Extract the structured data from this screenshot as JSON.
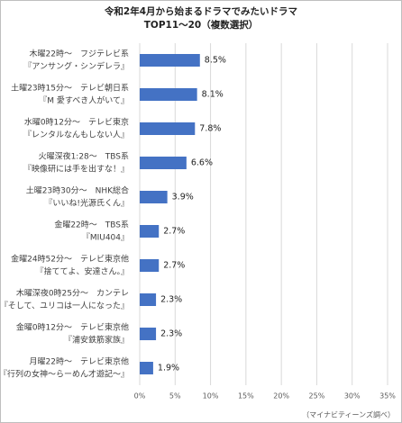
{
  "chart_data": {
    "type": "bar",
    "orientation": "horizontal",
    "title": "令和2年4月から始まるドラマでみたいドラマ",
    "subtitle": "TOP11～20（複数選択）",
    "categories": [
      [
        "木曜22時～　フジテレビ系",
        "『アンサング・シンデレラ』"
      ],
      [
        "土曜23時15分～　テレビ朝日系",
        "『M 愛すべき人がいて』"
      ],
      [
        "水曜0時12分～　テレビ東京",
        "『レンタルなんもしない人』"
      ],
      [
        "火曜深夜1:28～　TBS系",
        "『映像研には手を出すな！』"
      ],
      [
        "土曜23時30分～　NHK総合",
        "『いいね!光源氏くん』"
      ],
      [
        "金曜22時～　TBS系",
        "『MIU404』"
      ],
      [
        "金曜24時52分～　テレビ東京他",
        "『捨ててよ、安達さん。』"
      ],
      [
        "木曜深夜0時25分～　カンテレ",
        "『そして、ユリコは一人になった』"
      ],
      [
        "金曜0時12分～　テレビ東京他",
        "『浦安鉄筋家族』"
      ],
      [
        "月曜22時～　テレビ東京他",
        "『行列の女神～らーめん才遊記～』"
      ]
    ],
    "values": [
      8.5,
      8.1,
      7.8,
      6.6,
      3.9,
      2.7,
      2.7,
      2.3,
      2.3,
      1.9
    ],
    "value_labels": [
      "8.5%",
      "8.1%",
      "7.8%",
      "6.6%",
      "3.9%",
      "2.7%",
      "2.7%",
      "2.3%",
      "2.3%",
      "1.9%"
    ],
    "color": "#4472c4",
    "xlim": [
      0,
      35
    ],
    "xticks": [
      {
        "value": 0,
        "label": "0%"
      },
      {
        "value": 5,
        "label": "5%"
      },
      {
        "value": 10,
        "label": "10%"
      },
      {
        "value": 15,
        "label": "15%"
      },
      {
        "value": 20,
        "label": "20%"
      },
      {
        "value": 25,
        "label": "25%"
      },
      {
        "value": 30,
        "label": "30%"
      },
      {
        "value": 35,
        "label": "35%"
      }
    ],
    "grid": true,
    "source": "（マイナビティーンズ調べ）"
  }
}
